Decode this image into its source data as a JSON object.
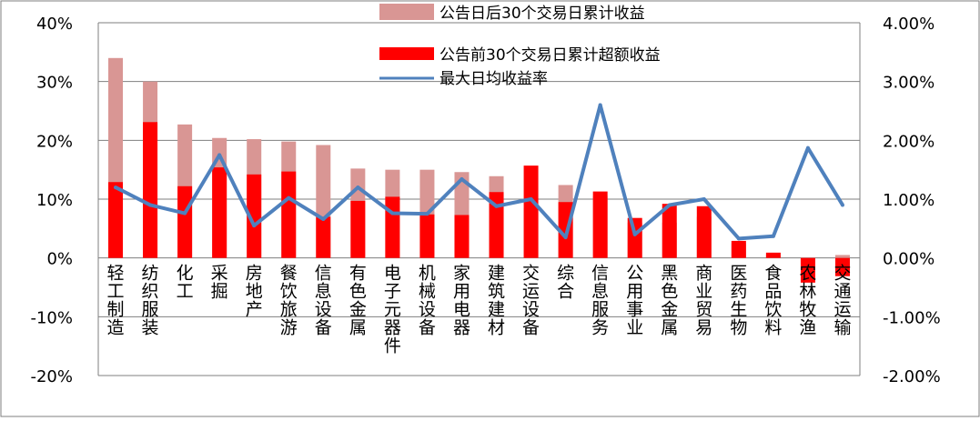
{
  "chart_data": {
    "type": "bar",
    "categories": [
      "轻工制造",
      "纺织服装",
      "化工",
      "采掘",
      "房地产",
      "餐饮旅游",
      "信息设备",
      "有色金属",
      "电子元器件",
      "机械设备",
      "家用电器",
      "建筑建材",
      "交运设备",
      "综合",
      "信息服务",
      "公用事业",
      "黑色金属",
      "商业贸易",
      "医药生物",
      "食品饮料",
      "农林牧渔",
      "交通运输"
    ],
    "series": [
      {
        "name": "公告日后30个交易日累计收益",
        "axis": "left",
        "kind": "bar",
        "color": "#d99694",
        "values": [
          34,
          30,
          22.7,
          20.4,
          20.2,
          19.8,
          19.2,
          15.2,
          15,
          15,
          14.6,
          13.9,
          8.5,
          12.4,
          10.5,
          6,
          6,
          7,
          2.5,
          0.5,
          -1,
          0.5
        ]
      },
      {
        "name": "公告前30个交易日累计超额收益",
        "axis": "left",
        "kind": "bar",
        "color": "#ff0000",
        "values": [
          12.9,
          23.1,
          12.2,
          15.4,
          14.2,
          14.7,
          7,
          9.7,
          10.4,
          7.4,
          7.3,
          11.2,
          15.7,
          9.5,
          11.3,
          6.8,
          9.2,
          8.8,
          2.9,
          0.9,
          -4.2,
          -3.1
        ]
      },
      {
        "name": "最大日均收益率",
        "axis": "right",
        "kind": "line",
        "color": "#4f81bd",
        "values": [
          1.2,
          0.9,
          0.76,
          1.75,
          0.55,
          1.02,
          0.66,
          1.2,
          0.76,
          0.75,
          1.34,
          0.88,
          1.0,
          0.35,
          2.6,
          0.4,
          0.9,
          1.0,
          0.33,
          0.37,
          1.87,
          0.9
        ]
      }
    ],
    "y_left": {
      "ticks": [
        "40%",
        "30%",
        "20%",
        "10%",
        "0%",
        "-10%",
        "-20%"
      ],
      "ylim": [
        -20,
        40
      ]
    },
    "y_right": {
      "ticks": [
        "4.00%",
        "3.00%",
        "2.00%",
        "1.00%",
        "0.00%",
        "-1.00%",
        "-2.00%"
      ],
      "ylim": [
        -2,
        4
      ]
    },
    "title": "",
    "xlabel": "",
    "ylabel": "",
    "grid": "horizontal",
    "legend_position": "top-center"
  }
}
